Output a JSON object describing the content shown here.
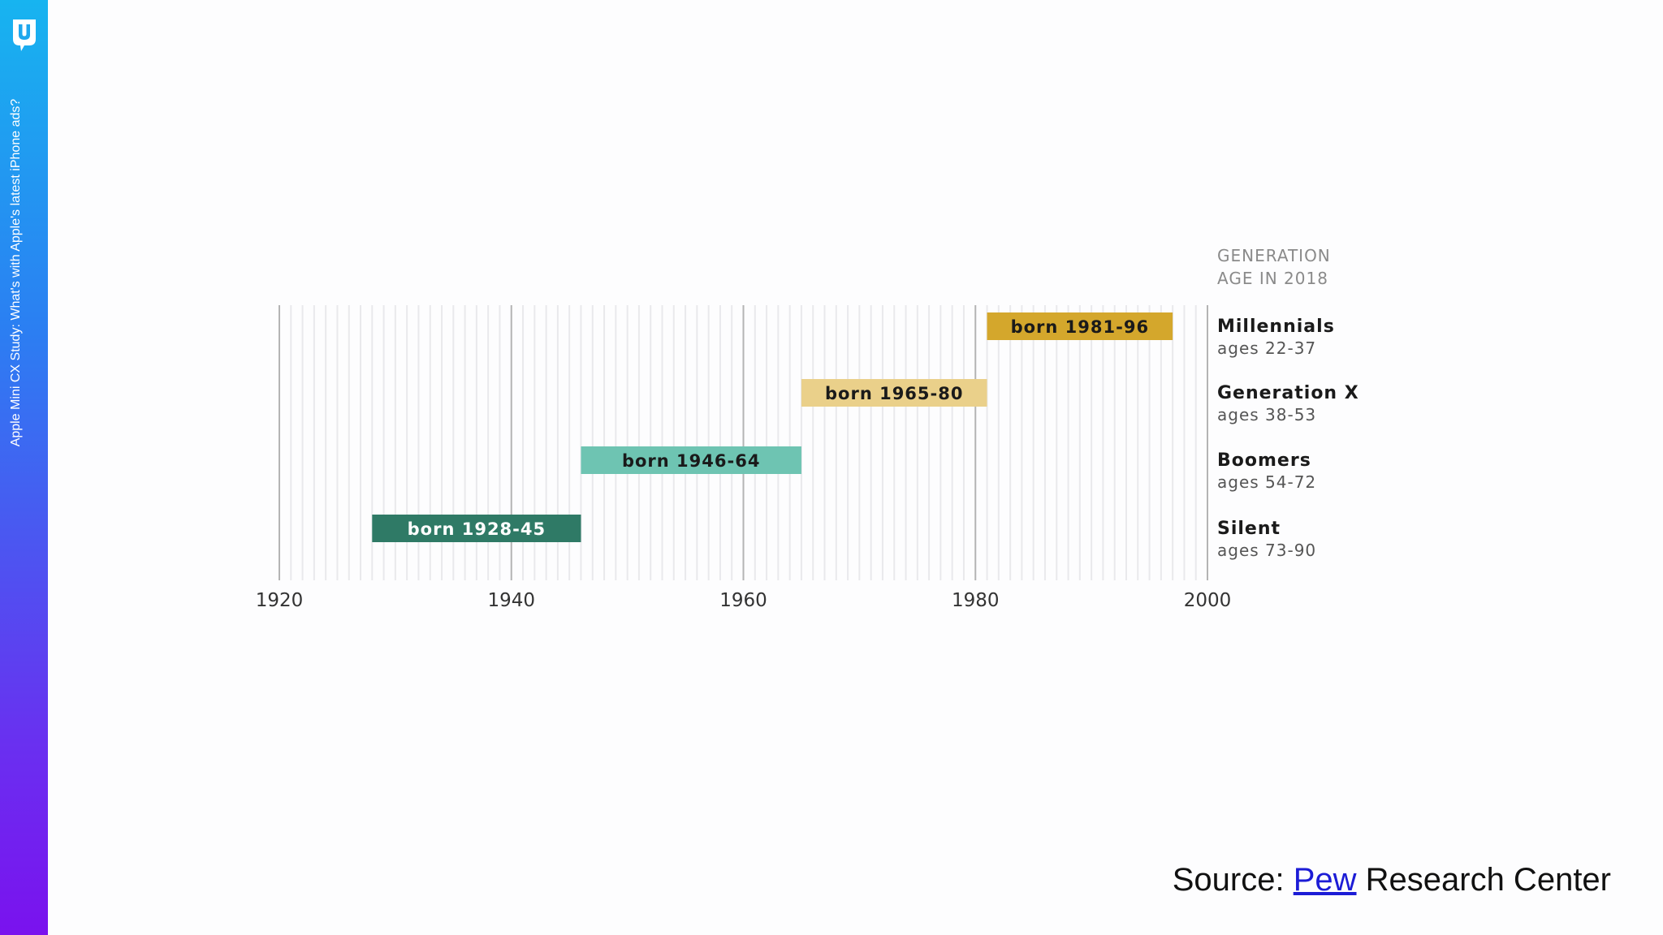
{
  "sidebar": {
    "title": "Apple Mini CX Study: What's with Apple's latest iPhone ads?",
    "logo_icon": "brand-logo-icon",
    "colors": {
      "gradient_top": "#17b4f0",
      "gradient_bottom": "#7a12ee"
    }
  },
  "chart_data": {
    "type": "bar",
    "orientation": "horizontal-range",
    "title": "",
    "xlabel": "",
    "ylabel": "",
    "xlim": [
      1920,
      2000
    ],
    "x_ticks": [
      "1920",
      "1940",
      "1960",
      "1980",
      "2000"
    ],
    "legend_header": [
      "GENERATION",
      "AGE IN 2018"
    ],
    "grid": true,
    "series": [
      {
        "name": "Millennials",
        "ages": "ages 22-37",
        "start": 1981,
        "end": 1996,
        "label": "born 1981-96",
        "color": "#d4a72c",
        "text_color": "#1a1a1a"
      },
      {
        "name": "Generation X",
        "ages": "ages 38-53",
        "start": 1965,
        "end": 1980,
        "label": "born 1965-80",
        "color": "#ead08a",
        "text_color": "#1a1a1a"
      },
      {
        "name": "Boomers",
        "ages": "ages 54-72",
        "start": 1946,
        "end": 1964,
        "label": "born 1946-64",
        "color": "#6ec4b2",
        "text_color": "#1a1a1a"
      },
      {
        "name": "Silent",
        "ages": "ages 73-90",
        "start": 1928,
        "end": 1945,
        "label": "born 1928-45",
        "color": "#2f7a66",
        "text_color": "#ffffff"
      }
    ]
  },
  "source": {
    "prefix": "Source: ",
    "link_text": "Pew",
    "suffix": " Research Center"
  }
}
